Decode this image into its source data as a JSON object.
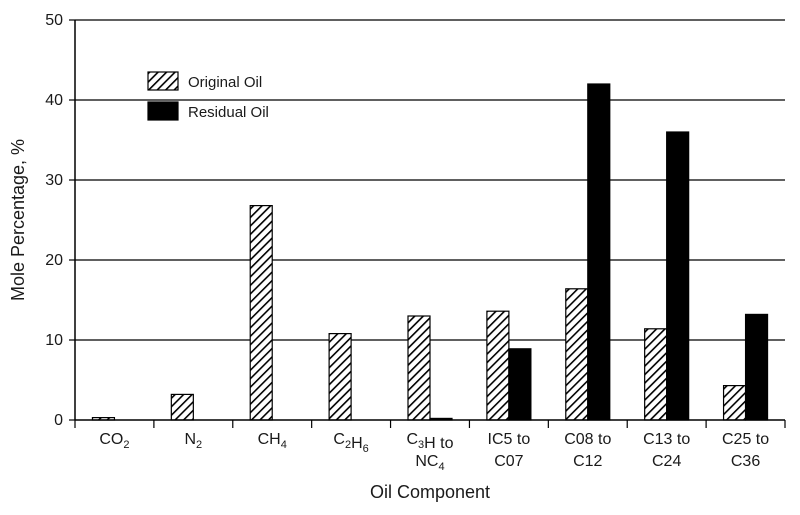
{
  "chart_data": {
    "type": "bar",
    "categories": [
      {
        "lines": [
          {
            "base": "CO",
            "sub": "2"
          }
        ]
      },
      {
        "lines": [
          {
            "base": "N",
            "sub": "2"
          }
        ]
      },
      {
        "lines": [
          {
            "base": "CH",
            "sub": "4"
          }
        ]
      },
      {
        "lines": [
          {
            "base": "C",
            "sub": "2"
          },
          {
            "base": "H",
            "sub": "6"
          }
        ]
      },
      {
        "lines": [
          {
            "base": "C",
            "sub": "3"
          },
          {
            "base": "H to",
            "sub": ""
          }
        ],
        "line2": [
          {
            "base": "NC",
            "sub": "4"
          }
        ]
      },
      {
        "lines": [
          {
            "base": "IC5 to",
            "sub": ""
          }
        ],
        "line2": [
          {
            "base": "C07",
            "sub": ""
          }
        ]
      },
      {
        "lines": [
          {
            "base": "C08 to",
            "sub": ""
          }
        ],
        "line2": [
          {
            "base": "C12",
            "sub": ""
          }
        ]
      },
      {
        "lines": [
          {
            "base": "C13 to",
            "sub": ""
          }
        ],
        "line2": [
          {
            "base": "C24",
            "sub": ""
          }
        ]
      },
      {
        "lines": [
          {
            "base": "C25 to",
            "sub": ""
          }
        ],
        "line2": [
          {
            "base": "C36",
            "sub": ""
          }
        ]
      }
    ],
    "series": [
      {
        "name": "Original Oil",
        "pattern": "hatch",
        "values": [
          0.3,
          3.2,
          26.8,
          10.8,
          13.0,
          13.6,
          16.4,
          11.4,
          4.3
        ]
      },
      {
        "name": "Residual Oil",
        "pattern": "solid",
        "values": [
          0,
          0,
          0,
          0,
          0.2,
          8.9,
          42.0,
          36.0,
          13.2
        ]
      }
    ],
    "xlabel": "Oil Component",
    "ylabel": "Mole Percentage, %",
    "ylim": [
      0,
      50
    ],
    "yticks": [
      0,
      10,
      20,
      30,
      40,
      50
    ],
    "grid": "horizontal",
    "legend": "top-left",
    "colors": {
      "bar": "#000000",
      "grid": "#000000",
      "background": "#ffffff"
    }
  }
}
